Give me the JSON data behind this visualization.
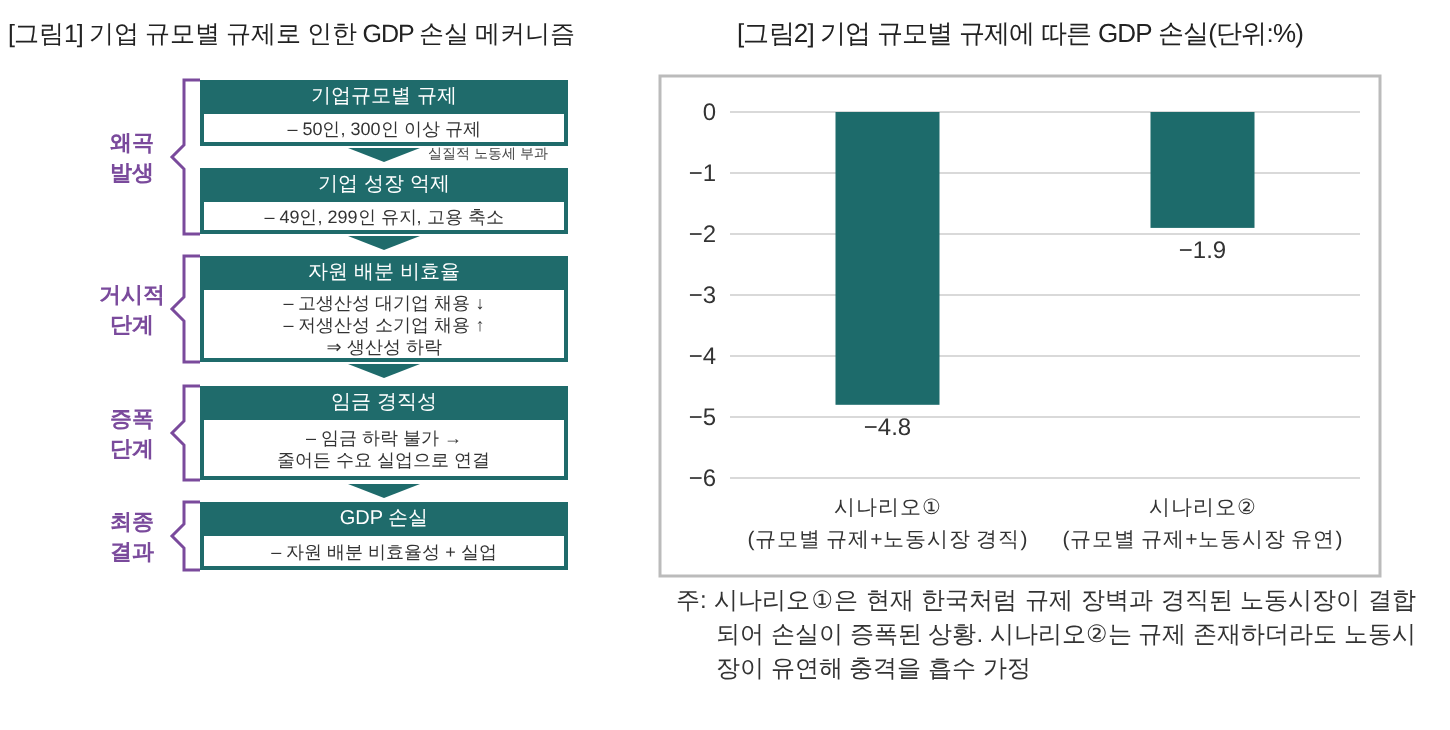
{
  "chart_data": [
    {
      "type": "other",
      "title": "[그림1] 기업 규모별 규제로 인한 GDP 손실 메커니즘",
      "annotations": [
        "왜곡\n발생",
        "기업규모별 규제",
        "– 50인, 300인 이상 규제",
        "실질적 노동세 부과",
        "기업 성장 억제",
        "– 49인, 299인 유지, 고용 축소",
        "거시적\n단계",
        "자원 배분 비효율",
        "– 고생산성 대기업 채용 ↓\n– 저생산성 소기업 채용 ↑\n⇒ 생산성 하락",
        "증폭\n단계",
        "임금 경직성",
        "– 임금 하락 불가 →\n줄어든 수요 실업으로 연결",
        "최종\n결과",
        "GDP 손실",
        "– 자원 배분 비효율성 + 실업"
      ]
    },
    {
      "type": "bar",
      "title": "[그림2] 기업 규모별 규제에 따른 GDP 손실(단위:%)",
      "categories": [
        "시나리오①\n(규모별 규제+노동시장 경직)",
        "시나리오②\n(규모별 규제+노동시장 유연)"
      ],
      "values": [
        -4.8,
        -1.9
      ],
      "color": "#1d6b6b",
      "data_labels": true,
      "ylim": [
        -6,
        0
      ],
      "yticks": [
        0,
        -1,
        -2,
        -3,
        -4,
        -5,
        -6
      ],
      "grid": "y",
      "annotations": [
        "주: 시나리오①은 현재 한국처럼 규제 장벽과 경직된 노동시장이 결합되어 손실이 증폭된 상황. 시나리오②는 규제 존재하더라도 노동시장이 유연해 충격을 흡수 가정"
      ]
    }
  ]
}
